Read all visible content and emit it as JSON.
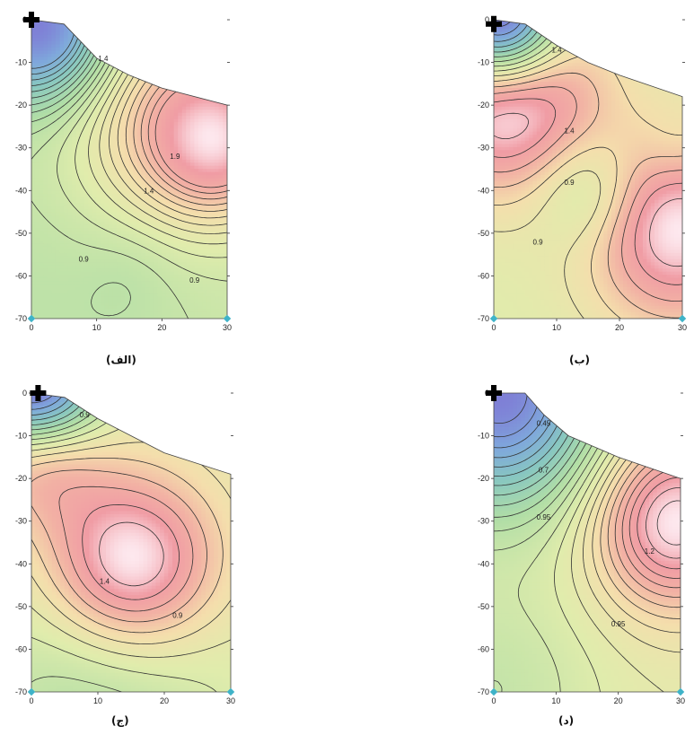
{
  "chart_data": [
    {
      "type": "contour",
      "caption": "(الف)",
      "x_ticks": [
        "0",
        "10",
        "20",
        "30"
      ],
      "y_ticks": [
        "0",
        "-10",
        "-20",
        "-30",
        "-40",
        "-50",
        "-60",
        "-70"
      ],
      "xlim": [
        0,
        30
      ],
      "ylim": [
        -70,
        0
      ],
      "boundary_top": [
        [
          0,
          0
        ],
        [
          5,
          -1
        ],
        [
          10,
          -9
        ],
        [
          15,
          -13
        ],
        [
          20,
          -16
        ],
        [
          30,
          -20
        ]
      ],
      "sources": [
        {
          "x": 1,
          "y": -1,
          "a": -1.6,
          "s": 8
        },
        {
          "x": 22,
          "y": -24,
          "a": 0.8,
          "s": 11
        },
        {
          "x": 29,
          "y": -29,
          "a": 0.9,
          "s": 7
        },
        {
          "x": 0,
          "y": -70,
          "a": -0.3,
          "s": 30
        },
        {
          "x": 15,
          "y": -60,
          "a": -0.1,
          "s": 5
        }
      ],
      "base": 1.2,
      "levels": [
        0.0,
        0.1,
        0.2,
        0.3,
        0.4,
        0.5,
        0.6,
        0.7,
        0.8,
        0.9,
        1.0,
        1.1,
        1.2,
        1.3,
        1.4,
        1.5,
        1.6,
        1.7,
        1.8,
        1.9,
        2.0,
        2.1
      ],
      "contour_labels": [
        {
          "x": 11,
          "y": -9,
          "text": "1.4"
        },
        {
          "x": 22,
          "y": -32,
          "text": "1.9"
        },
        {
          "x": 18,
          "y": -40,
          "text": "1.4"
        },
        {
          "x": 8,
          "y": -56,
          "text": "0.9"
        },
        {
          "x": 25,
          "y": -61,
          "text": "0.9"
        }
      ],
      "marker": {
        "x": 0,
        "y": 0
      }
    },
    {
      "type": "contour",
      "caption": "(ب)",
      "x_ticks": [
        "0",
        "10",
        "20",
        "30"
      ],
      "y_ticks": [
        "0",
        "-10",
        "-20",
        "-30",
        "-40",
        "-50",
        "-60",
        "-70"
      ],
      "xlim": [
        0,
        30
      ],
      "ylim": [
        -70,
        0
      ],
      "boundary_top": [
        [
          0,
          0
        ],
        [
          5,
          -1
        ],
        [
          10,
          -6
        ],
        [
          15,
          -10
        ],
        [
          20,
          -13
        ],
        [
          30,
          -18
        ]
      ],
      "sources": [
        {
          "x": 1,
          "y": -1,
          "a": -1.4,
          "s": 7
        },
        {
          "x": 2,
          "y": -16,
          "a": 0.9,
          "s": 10
        },
        {
          "x": 29,
          "y": -49,
          "a": 0.7,
          "s": 10
        },
        {
          "x": 15,
          "y": -40,
          "a": -0.3,
          "s": 6
        },
        {
          "x": 29,
          "y": -31,
          "a": -0.1,
          "s": 4
        }
      ],
      "base": 1.0,
      "levels": [
        0.0,
        0.1,
        0.2,
        0.3,
        0.4,
        0.5,
        0.6,
        0.7,
        0.8,
        0.9,
        1.0,
        1.1,
        1.2,
        1.3,
        1.4,
        1.5,
        1.6,
        1.7,
        1.8,
        1.9
      ],
      "contour_labels": [
        {
          "x": 10,
          "y": -7,
          "text": "1.4"
        },
        {
          "x": 12,
          "y": -26,
          "text": "1.4"
        },
        {
          "x": 12,
          "y": -38,
          "text": "0.9"
        },
        {
          "x": 7,
          "y": -52,
          "text": "0.9"
        }
      ],
      "marker": {
        "x": 0,
        "y": -1
      }
    },
    {
      "type": "contour",
      "caption": "(ج)",
      "x_ticks": [
        "0",
        "10",
        "20",
        "30"
      ],
      "y_ticks": [
        "0",
        "-10",
        "-20",
        "-30",
        "-40",
        "-50",
        "-60",
        "-70"
      ],
      "xlim": [
        0,
        30
      ],
      "ylim": [
        -70,
        0
      ],
      "boundary_top": [
        [
          0,
          0
        ],
        [
          5,
          -1
        ],
        [
          10,
          -6
        ],
        [
          15,
          -10
        ],
        [
          20,
          -14
        ],
        [
          30,
          -19
        ]
      ],
      "sources": [
        {
          "x": 0.5,
          "y": -0.5,
          "a": -1.4,
          "s": 7
        },
        {
          "x": 1,
          "y": -12,
          "a": 0.7,
          "s": 7
        },
        {
          "x": 15,
          "y": -40,
          "a": 0.8,
          "s": 9
        },
        {
          "x": 10,
          "y": -70,
          "a": -0.3,
          "s": 14
        }
      ],
      "base": 1.0,
      "levels": [
        0.0,
        0.1,
        0.2,
        0.3,
        0.4,
        0.5,
        0.6,
        0.7,
        0.8,
        0.9,
        1.0,
        1.1,
        1.2,
        1.3,
        1.4,
        1.5,
        1.6,
        1.7,
        1.8
      ],
      "contour_labels": [
        {
          "x": 8,
          "y": -5,
          "text": "0.9"
        },
        {
          "x": 11,
          "y": -44,
          "text": "1.4"
        },
        {
          "x": 22,
          "y": -52,
          "text": "0.9"
        }
      ],
      "marker": {
        "x": 1,
        "y": 0
      }
    },
    {
      "type": "contour",
      "caption": "(د)",
      "x_ticks": [
        "0",
        "10",
        "20",
        "30"
      ],
      "y_ticks": [
        "0",
        "-10",
        "-20",
        "-30",
        "-40",
        "-50",
        "-60",
        "-70"
      ],
      "xlim": [
        0,
        30
      ],
      "ylim": [
        -70,
        0
      ],
      "boundary_top": [
        [
          0,
          0
        ],
        [
          5,
          0
        ],
        [
          8,
          -5
        ],
        [
          12,
          -10
        ],
        [
          20,
          -15
        ],
        [
          30,
          -20
        ]
      ],
      "sources": [
        {
          "x": 1,
          "y": 0,
          "a": -0.75,
          "s": 12
        },
        {
          "x": 29,
          "y": -30,
          "a": 0.55,
          "s": 9
        },
        {
          "x": 0,
          "y": -70,
          "a": -0.15,
          "s": 12
        }
      ],
      "base": 1.0,
      "levels": [
        0.25,
        0.3,
        0.35,
        0.4,
        0.45,
        0.5,
        0.55,
        0.6,
        0.65,
        0.7,
        0.75,
        0.8,
        0.85,
        0.9,
        0.95,
        1.0,
        1.05,
        1.1,
        1.15,
        1.2,
        1.25,
        1.3,
        1.35,
        1.4,
        1.45,
        1.5
      ],
      "contour_labels": [
        {
          "x": 8,
          "y": -7,
          "text": "0.45"
        },
        {
          "x": 8,
          "y": -18,
          "text": "0.7"
        },
        {
          "x": 8,
          "y": -29,
          "text": "0.95"
        },
        {
          "x": 25,
          "y": -37,
          "text": "1.2"
        },
        {
          "x": 20,
          "y": -54,
          "text": "0.95"
        }
      ],
      "marker": {
        "x": 0,
        "y": 0
      }
    }
  ]
}
